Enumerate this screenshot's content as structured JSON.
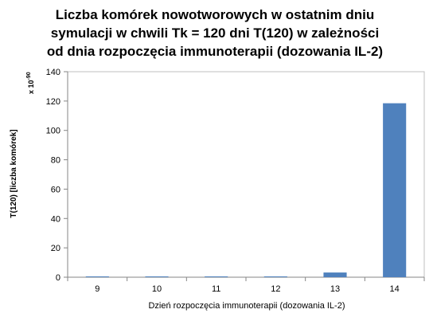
{
  "chart_data": {
    "type": "bar",
    "title_lines": [
      "Liczba komórek nowotworowych w ostatnim dniu",
      "symulacji w chwili Tk = 120 dni T(120) w zależności",
      "od dnia rozpoczęcia immunoterapii (dozowania IL-2)"
    ],
    "xlabel": "Dzień rozpoczęcia immunoterapii (dozowania IL-2)",
    "ylabel": "T(120) [liczba komórek]",
    "y_multiplier_base": "x 10",
    "y_multiplier_exp": "-90",
    "categories": [
      "9",
      "10",
      "11",
      "12",
      "13",
      "14"
    ],
    "values": [
      0.3,
      0.3,
      0.3,
      0.3,
      3.2,
      118.5
    ],
    "ylim": [
      0,
      140
    ],
    "yticks": [
      0,
      20,
      40,
      60,
      80,
      100,
      120,
      140
    ],
    "grid": false,
    "legend": "none",
    "bar_color": "#4f81bd"
  }
}
